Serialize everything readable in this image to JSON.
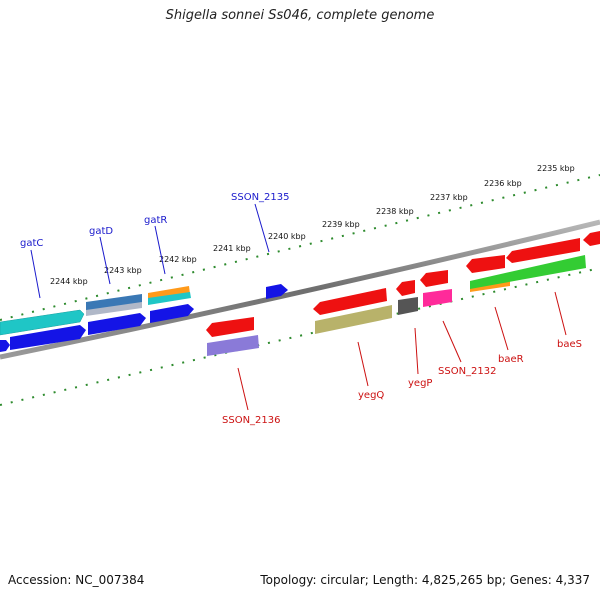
{
  "title": "Shigella sonnei Ss046, complete genome",
  "footer": {
    "accession_label": "Accession:",
    "accession": "NC_007384",
    "topology_line": "Topology: circular; Length: 4,825,265 bp; Genes: 4,337"
  },
  "colors": {
    "backbone": "#7d7d7d",
    "tick": "#2e8b2e",
    "forward_label": "#1a1acc",
    "reverse_label": "#cc1111"
  },
  "scale_labels": [
    "2235 kbp",
    "2236 kbp",
    "2237 kbp",
    "2238 kbp",
    "2239 kbp",
    "2240 kbp",
    "2241 kbp",
    "2242 kbp",
    "2243 kbp",
    "2244 kbp"
  ],
  "genes_forward": [
    {
      "name": "gatC",
      "color": "#1fc6c6"
    },
    {
      "name": "gatD",
      "color": "#3a78b5"
    },
    {
      "name": "gatR",
      "color": "#ff9a1a"
    },
    {
      "name": "SSON_2135",
      "color": "#1414e6"
    }
  ],
  "genes_reverse": [
    {
      "name": "SSON_2136",
      "color": "#ee1111"
    },
    {
      "name": "yegQ",
      "color": "#ee1111"
    },
    {
      "name": "yegP",
      "color": "#ee1111"
    },
    {
      "name": "SSON_2132",
      "color": "#ff2a9a"
    },
    {
      "name": "baeR",
      "color": "#ee1111"
    },
    {
      "name": "baeS",
      "color": "#ee1111"
    }
  ]
}
